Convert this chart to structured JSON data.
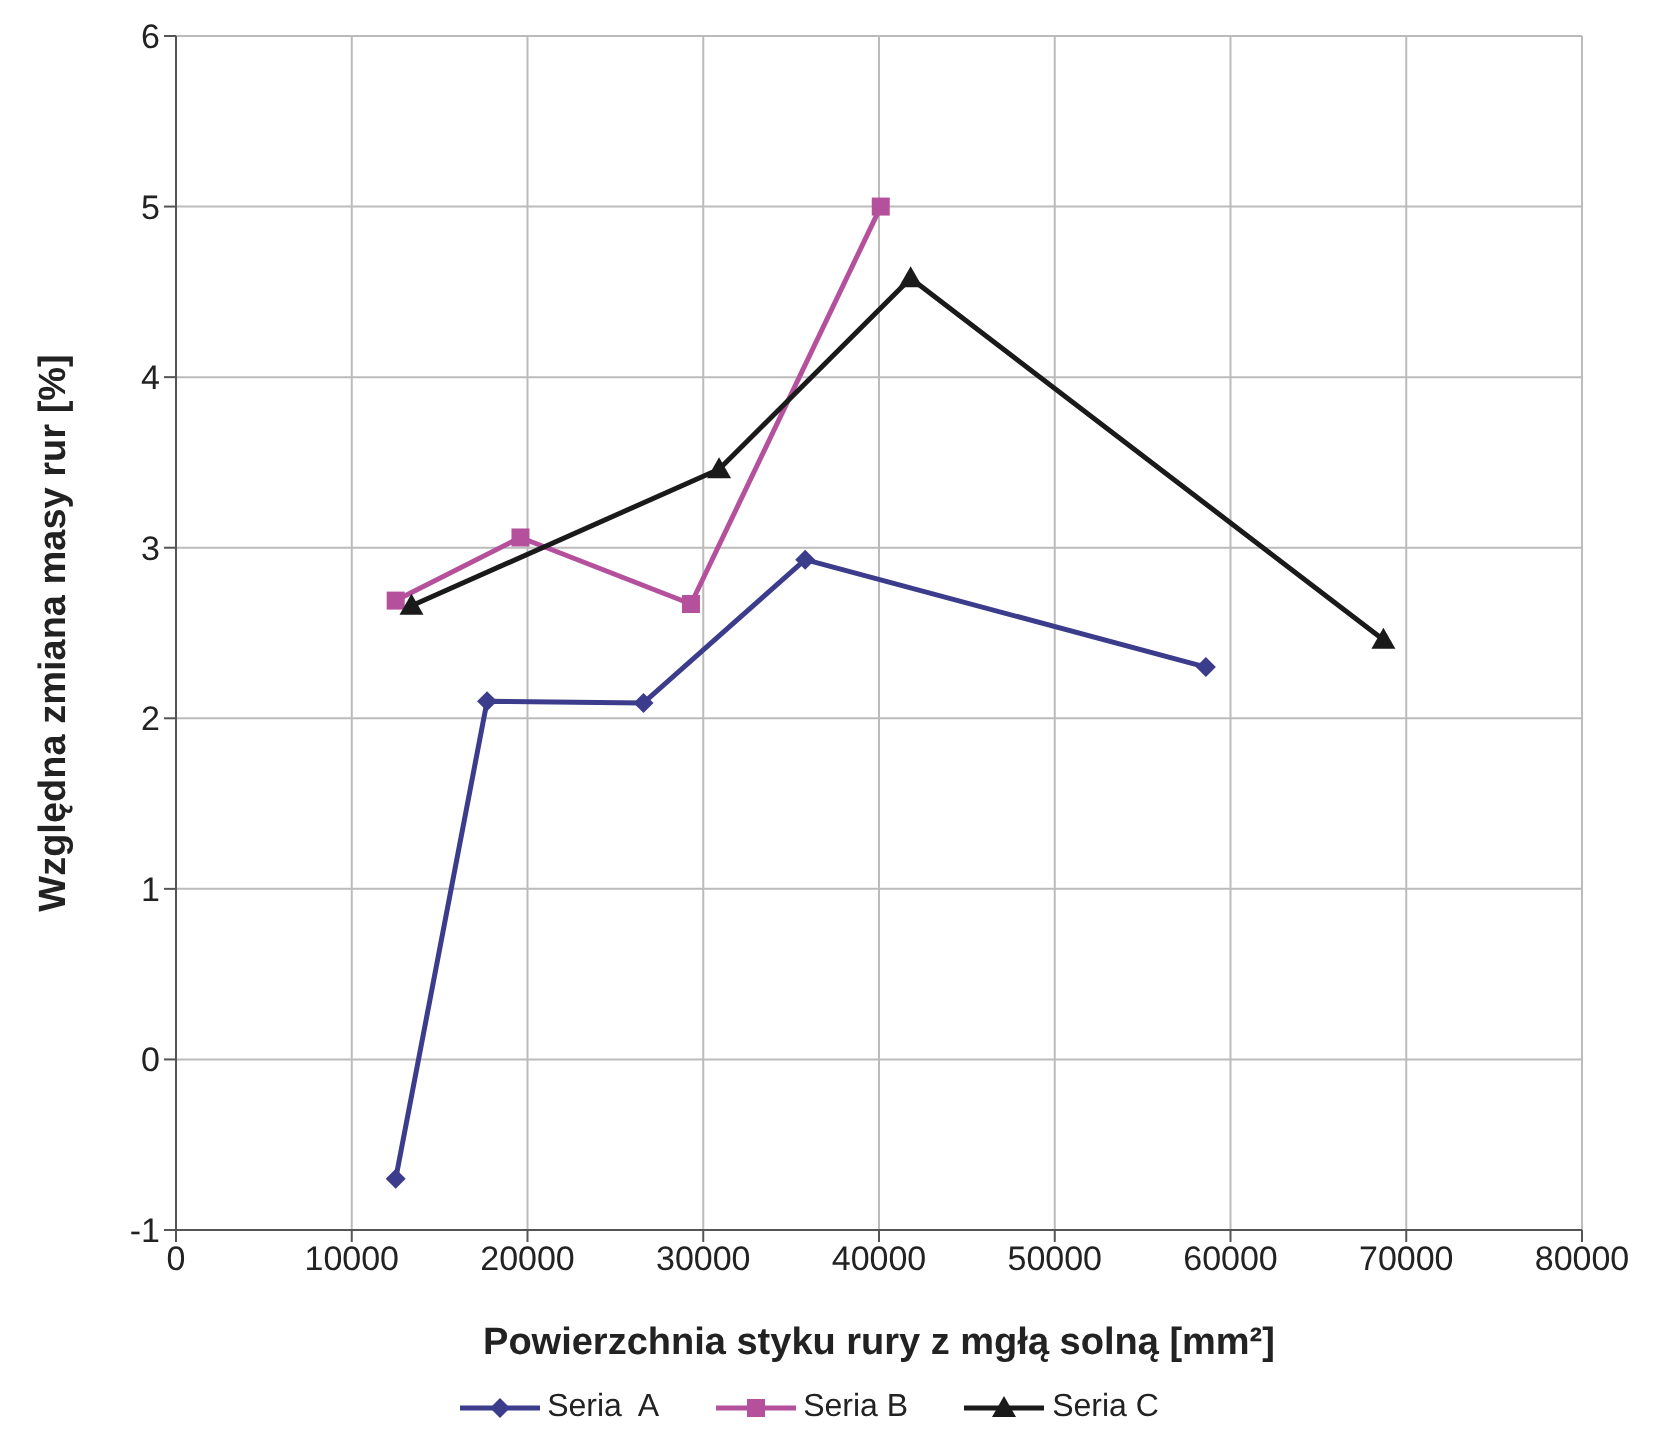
{
  "chart_data": {
    "type": "line",
    "xlabel": "Powierzchnia styku rury z mgłą solną [mm²]",
    "ylabel": "Względna zmiana masy rur [%]",
    "xlim": [
      0,
      80000
    ],
    "xticks": [
      0,
      10000,
      20000,
      30000,
      40000,
      50000,
      60000,
      70000,
      80000
    ],
    "ylim": [
      -1,
      6
    ],
    "yticks": [
      -1,
      0,
      1,
      2,
      3,
      4,
      5,
      6
    ],
    "grid": true,
    "legend": "bottom",
    "series": [
      {
        "name": "Seria  A",
        "color": "#3c3c8c",
        "marker": "diamond",
        "x": [
          12500,
          17700,
          26600,
          35800,
          58600
        ],
        "values": [
          -0.7,
          2.1,
          2.09,
          2.93,
          2.3
        ]
      },
      {
        "name": "Seria B",
        "color": "#b4509c",
        "marker": "square",
        "x": [
          12500,
          19600,
          29300,
          40100
        ],
        "values": [
          2.69,
          3.06,
          2.67,
          5.0
        ]
      },
      {
        "name": "Seria C",
        "color": "#1a1a1a",
        "marker": "triangle",
        "x": [
          13400,
          30900,
          41800,
          68700
        ],
        "values": [
          2.66,
          3.46,
          4.58,
          2.46
        ]
      }
    ]
  }
}
